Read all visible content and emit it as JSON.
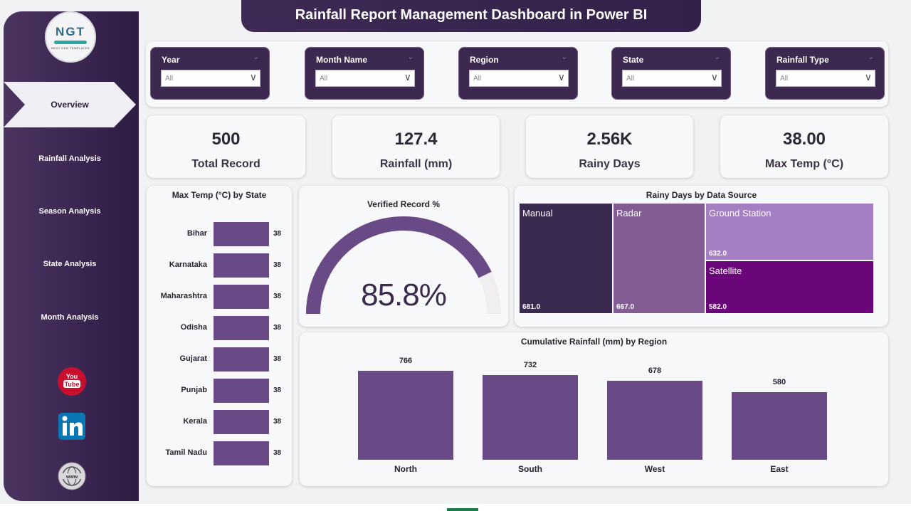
{
  "title": "Rainfall Report Management Dashboard in Power BI",
  "logo": {
    "text": "NGT",
    "subtitle": "NEXT GEN TEMPLATES"
  },
  "nav": {
    "active": "Overview",
    "items": [
      "Rainfall Analysis",
      "Season Analysis",
      "State Analysis",
      "Month Analysis"
    ]
  },
  "social": {
    "youtube_icon": "youtube-icon",
    "linkedin_icon": "linkedin-icon",
    "website_icon": "globe-icon"
  },
  "slicers": [
    {
      "label": "Year",
      "value": "All"
    },
    {
      "label": "Month Name",
      "value": "All"
    },
    {
      "label": "Region",
      "value": "All"
    },
    {
      "label": "State",
      "value": "All"
    },
    {
      "label": "Rainfall Type",
      "value": "All"
    }
  ],
  "kpis": [
    {
      "value": "500",
      "label": "Total Record"
    },
    {
      "value": "127.4",
      "label": "Rainfall (mm)"
    },
    {
      "value": "2.56K",
      "label": "Rainy Days"
    },
    {
      "value": "38.00",
      "label": "Max Temp (°C)"
    }
  ],
  "colors": {
    "sidebar": "#3a2550",
    "accent": "#6a4a86",
    "gauge_track": "#f0eef0"
  },
  "chart_data": [
    {
      "type": "bar",
      "orientation": "horizontal",
      "title": "Max Temp (°C) by State",
      "categories": [
        "Bihar",
        "Karnataka",
        "Maharashtra",
        "Odisha",
        "Gujarat",
        "Punjab",
        "Kerala",
        "Tamil Nadu"
      ],
      "values": [
        38,
        38,
        38,
        38,
        38,
        38,
        38,
        38
      ],
      "data_labels": [
        "38",
        "38",
        "38",
        "38",
        "38",
        "38",
        "38",
        "38"
      ]
    },
    {
      "type": "gauge",
      "title": "Verified Record %",
      "value": 85.8,
      "value_label": "85.8%",
      "min": 0,
      "max": 100
    },
    {
      "type": "treemap",
      "title": "Rainy Days by Data Source",
      "items": [
        {
          "name": "Manual",
          "value": 681.0,
          "label": "681.0",
          "color": "#3b2a4f"
        },
        {
          "name": "Radar",
          "value": 667.0,
          "label": "667.0",
          "color": "#835c93"
        },
        {
          "name": "Ground Station",
          "value": 632.0,
          "label": "632.0",
          "color": "#a47fc2"
        },
        {
          "name": "Satellite",
          "value": 582.0,
          "label": "582.0",
          "color": "#6b057a"
        }
      ]
    },
    {
      "type": "bar",
      "title": "Cumulative Rainfall (mm) by Region",
      "categories": [
        "North",
        "South",
        "West",
        "East"
      ],
      "values": [
        766,
        732,
        678,
        580
      ],
      "data_labels": [
        "766",
        "732",
        "678",
        "580"
      ]
    }
  ]
}
